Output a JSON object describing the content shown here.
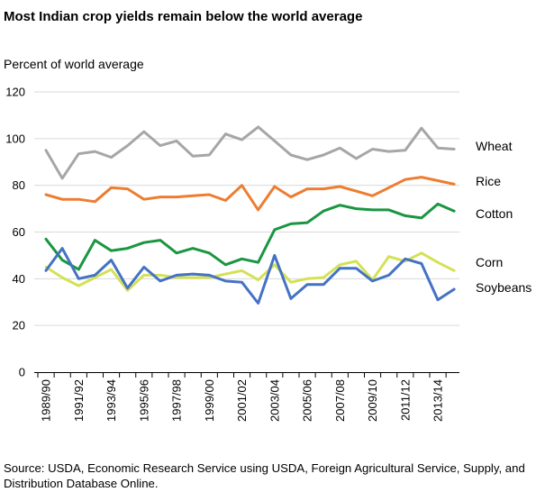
{
  "title": "Most Indian crop yields remain below the world average",
  "ylabel": "Percent of world average",
  "source": "Source: USDA, Economic Research Service using USDA, Foreign Agricultural Service, Supply, and Distribution Database Online.",
  "chart_data": {
    "type": "line",
    "title": "Most Indian crop yields remain below the world average",
    "ylabel": "Percent of world average",
    "xlabel": "",
    "ylim": [
      0,
      120
    ],
    "yticks": [
      0,
      20,
      40,
      60,
      80,
      100,
      120
    ],
    "grid": "horizontal",
    "x": [
      "1989/90",
      "1990/91",
      "1991/92",
      "1992/93",
      "1993/94",
      "1994/95",
      "1995/96",
      "1996/97",
      "1997/98",
      "1998/99",
      "1999/00",
      "2000/01",
      "2001/02",
      "2002/03",
      "2003/04",
      "2004/05",
      "2005/06",
      "2006/07",
      "2007/08",
      "2008/09",
      "2009/10",
      "2010/11",
      "2011/12",
      "2012/13",
      "2013/14",
      "2014/15"
    ],
    "xtick_labels": [
      "1989/90",
      "",
      "1991/92",
      "",
      "1993/94",
      "",
      "1995/96",
      "",
      "1997/98",
      "",
      "1999/00",
      "",
      "2001/02",
      "",
      "2003/04",
      "",
      "2005/06",
      "",
      "2007/08",
      "",
      "2009/10",
      "",
      "2011/12",
      "",
      "2013/14",
      ""
    ],
    "series": [
      {
        "name": "Wheat",
        "color": "#a6a6a6",
        "values": [
          95,
          83,
          93.5,
          94.5,
          92,
          97,
          103,
          97,
          99,
          92.5,
          93,
          102,
          99.5,
          105,
          99,
          93,
          91,
          93,
          96,
          91.5,
          95.5,
          94.5,
          95,
          104.5,
          96,
          95.5
        ]
      },
      {
        "name": "Rice",
        "color": "#ed7d31",
        "values": [
          76,
          74,
          74,
          73,
          79,
          78.5,
          74,
          75,
          75,
          75.5,
          76,
          73.5,
          80,
          69.5,
          79.5,
          75,
          78.5,
          78.5,
          79.5,
          77.5,
          75.5,
          79,
          82.5,
          83.5,
          82,
          80.5
        ]
      },
      {
        "name": "Cotton",
        "color": "#1a9641",
        "values": [
          57,
          48,
          44,
          56.5,
          52,
          53,
          55.5,
          56.5,
          51,
          53,
          51,
          46,
          48.5,
          47,
          61,
          63.5,
          64,
          69,
          71.5,
          70,
          69.5,
          69.5,
          67,
          66,
          72,
          69
        ]
      },
      {
        "name": "Corn",
        "color": "#d4e157",
        "values": [
          45,
          40.5,
          37,
          40.5,
          44,
          35,
          41.5,
          41.5,
          40.5,
          40.5,
          40.5,
          42,
          43.5,
          39.5,
          46,
          38.5,
          40,
          40.5,
          46,
          47.5,
          39.5,
          49.5,
          47.5,
          51,
          47,
          43.5
        ]
      },
      {
        "name": "Soybeans",
        "color": "#4472c4",
        "values": [
          43.5,
          53,
          40,
          41.5,
          48,
          36,
          45,
          39,
          41.5,
          42,
          41.5,
          39,
          38.5,
          29.5,
          50,
          31.5,
          37.5,
          37.5,
          44.5,
          44.5,
          39,
          41.5,
          48.5,
          46.5,
          31,
          35.5
        ]
      }
    ]
  }
}
